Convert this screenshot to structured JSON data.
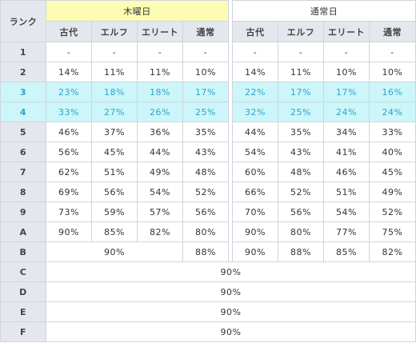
{
  "corner_label": "ランク",
  "groups": {
    "thursday": "木曜日",
    "normal": "通常日"
  },
  "columns": [
    "古代",
    "エルフ",
    "エリート",
    "通常"
  ],
  "rows": [
    {
      "rank": "1",
      "thu": [
        "-",
        "-",
        "-",
        "-"
      ],
      "norm": [
        "-",
        "-",
        "-",
        "-"
      ]
    },
    {
      "rank": "2",
      "thu": [
        "14%",
        "11%",
        "11%",
        "10%"
      ],
      "norm": [
        "14%",
        "11%",
        "10%",
        "10%"
      ]
    },
    {
      "rank": "3",
      "thu": [
        "23%",
        "18%",
        "18%",
        "17%"
      ],
      "norm": [
        "22%",
        "17%",
        "17%",
        "16%"
      ],
      "highlight": true
    },
    {
      "rank": "4",
      "thu": [
        "33%",
        "27%",
        "26%",
        "25%"
      ],
      "norm": [
        "32%",
        "25%",
        "24%",
        "24%"
      ],
      "highlight": true
    },
    {
      "rank": "5",
      "thu": [
        "46%",
        "37%",
        "36%",
        "35%"
      ],
      "norm": [
        "44%",
        "35%",
        "34%",
        "33%"
      ]
    },
    {
      "rank": "6",
      "thu": [
        "56%",
        "45%",
        "44%",
        "43%"
      ],
      "norm": [
        "54%",
        "43%",
        "41%",
        "40%"
      ]
    },
    {
      "rank": "7",
      "thu": [
        "62%",
        "51%",
        "49%",
        "48%"
      ],
      "norm": [
        "60%",
        "48%",
        "46%",
        "45%"
      ]
    },
    {
      "rank": "8",
      "thu": [
        "69%",
        "56%",
        "54%",
        "52%"
      ],
      "norm": [
        "66%",
        "52%",
        "51%",
        "49%"
      ]
    },
    {
      "rank": "9",
      "thu": [
        "73%",
        "59%",
        "57%",
        "56%"
      ],
      "norm": [
        "70%",
        "56%",
        "54%",
        "52%"
      ]
    },
    {
      "rank": "A",
      "thu": [
        "90%",
        "85%",
        "82%",
        "80%"
      ],
      "norm": [
        "90%",
        "80%",
        "77%",
        "75%"
      ]
    }
  ],
  "row_b": {
    "rank": "B",
    "thu_merged": "90%",
    "thu_normal": "88%",
    "norm": [
      "90%",
      "88%",
      "85%",
      "82%"
    ]
  },
  "merged_rows": [
    {
      "rank": "C",
      "value": "90%"
    },
    {
      "rank": "D",
      "value": "90%"
    },
    {
      "rank": "E",
      "value": "90%"
    },
    {
      "rank": "F",
      "value": "90%"
    }
  ]
}
